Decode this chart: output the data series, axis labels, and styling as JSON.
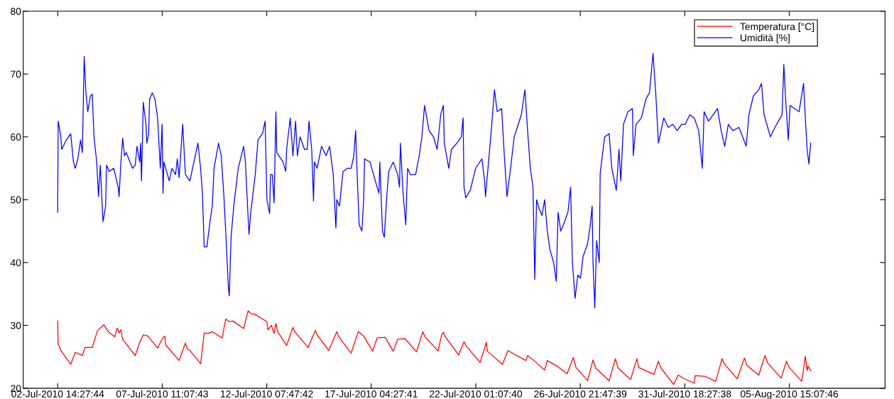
{
  "chart_data": {
    "type": "line",
    "xlim": [
      "2010-07-01T00:00",
      "2010-08-10T02:00"
    ],
    "xticks": [
      {
        "value": "2010-07-02T14:28",
        "label": "02-Jul-2010 14:27:44"
      },
      {
        "value": "2010-07-07T11:08",
        "label": "07-Jul-2010 11:07:43"
      },
      {
        "value": "2010-07-12T07:48",
        "label": "12-Jul-2010 07:47:42"
      },
      {
        "value": "2010-07-17T04:28",
        "label": "17-Jul-2010 04:27:41"
      },
      {
        "value": "2010-07-22T01:08",
        "label": "22-Jul-2010 01:07:40"
      },
      {
        "value": "2010-07-26T21:48",
        "label": "26-Jul-2010 21:47:39"
      },
      {
        "value": "2010-07-31T18:28",
        "label": "31-Jul-2010 18:27:38"
      },
      {
        "value": "2010-08-05T15:08",
        "label": "05-Aug-2010 15:07:46"
      }
    ],
    "ylim": [
      20,
      80
    ],
    "yticks": [
      20,
      30,
      40,
      50,
      60,
      70,
      80
    ],
    "grid": false,
    "legend": "top right",
    "marker": "none",
    "line_style": "solid",
    "series": [
      {
        "name": "Temperatura [°C]",
        "color": "#ff0000",
        "x": [
          "2010-07-02T14:27",
          "2010-07-02T15:00",
          "2010-07-02T18:00",
          "2010-07-03T05:00",
          "2010-07-03T10:00",
          "2010-07-03T18:00",
          "2010-07-03T21:00",
          "2010-07-04T05:00",
          "2010-07-04T11:00",
          "2010-07-04T18:00",
          "2010-07-04T23:00",
          "2010-07-05T06:00",
          "2010-07-05T09:00",
          "2010-07-05T11:00",
          "2010-07-05T13:00",
          "2010-07-05T15:00",
          "2010-07-06T05:00",
          "2010-07-06T10:00",
          "2010-07-06T14:00",
          "2010-07-06T19:00",
          "2010-07-07T06:00",
          "2010-07-07T11:00",
          "2010-07-07T14:00",
          "2010-07-07T15:00",
          "2010-07-08T06:00",
          "2010-07-08T10:00",
          "2010-07-08T13:00",
          "2010-07-08T15:00",
          "2010-07-08T18:00",
          "2010-07-09T06:00",
          "2010-07-09T10:00",
          "2010-07-09T14:00",
          "2010-07-09T19:00",
          "2010-07-10T06:00",
          "2010-07-10T10:00",
          "2010-07-10T14:00",
          "2010-07-10T18:00",
          "2010-07-11T06:00",
          "2010-07-11T11:00",
          "2010-07-11T15:00",
          "2010-07-11T18:00",
          "2010-07-12T08:00",
          "2010-07-12T09:00",
          "2010-07-12T13:00",
          "2010-07-12T16:00",
          "2010-07-12T18:00",
          "2010-07-12T20:00",
          "2010-07-13T06:00",
          "2010-07-13T13:00",
          "2010-07-13T15:00",
          "2010-07-14T06:00",
          "2010-07-14T14:00",
          "2010-07-14T16:00",
          "2010-07-15T05:00",
          "2010-07-15T14:00",
          "2010-07-15T16:00",
          "2010-07-16T06:00",
          "2010-07-16T14:00",
          "2010-07-16T20:00",
          "2010-07-17T06:00",
          "2010-07-17T11:00",
          "2010-07-17T20:00",
          "2010-07-18T05:00",
          "2010-07-18T10:00",
          "2010-07-18T18:00",
          "2010-07-19T07:00",
          "2010-07-19T14:00",
          "2010-07-19T16:00",
          "2010-07-20T07:00",
          "2010-07-20T11:00",
          "2010-07-20T13:00",
          "2010-07-20T15:00",
          "2010-07-21T06:00",
          "2010-07-21T12:00",
          "2010-07-21T14:00",
          "2010-07-22T06:00",
          "2010-07-22T13:00",
          "2010-07-22T14:00",
          "2010-07-23T07:00",
          "2010-07-23T13:00",
          "2010-07-24T09:00",
          "2010-07-24T11:00",
          "2010-07-24T18:00",
          "2010-07-25T06:00",
          "2010-07-25T09:00",
          "2010-07-25T20:00",
          "2010-07-26T07:00",
          "2010-07-26T14:00",
          "2010-07-26T17:00",
          "2010-07-27T06:00",
          "2010-07-27T12:00",
          "2010-07-27T15:00",
          "2010-07-28T06:00",
          "2010-07-28T13:00",
          "2010-07-28T16:00",
          "2010-07-29T06:00",
          "2010-07-29T13:00",
          "2010-07-29T15:00",
          "2010-07-30T08:00",
          "2010-07-30T13:00",
          "2010-07-30T16:00",
          "2010-07-31T06:00",
          "2010-07-31T11:00",
          "2010-07-31T18:00",
          "2010-08-01T05:00",
          "2010-08-01T06:00",
          "2010-08-01T17:00",
          "2010-08-02T05:00",
          "2010-08-02T12:00",
          "2010-08-02T15:00",
          "2010-08-03T05:00",
          "2010-08-03T13:00",
          "2010-08-03T16:00",
          "2010-08-04T05:00",
          "2010-08-04T12:00",
          "2010-08-04T15:00",
          "2010-08-05T06:00",
          "2010-08-05T12:00",
          "2010-08-05T15:00",
          "2010-08-06T05:00",
          "2010-08-06T09:00",
          "2010-08-06T11:00",
          "2010-08-06T12:00",
          "2010-08-06T15:00"
        ],
        "values": [
          30.7,
          27,
          26,
          23.8,
          25.7,
          25.2,
          26.5,
          26.5,
          29.2,
          30.1,
          29,
          28.2,
          29.6,
          28.8,
          29.3,
          27.8,
          25.2,
          27.3,
          28.5,
          28.3,
          26.4,
          27.8,
          28.3,
          26.9,
          24.4,
          26,
          27.2,
          26.3,
          26,
          23.9,
          28.8,
          28.7,
          29,
          28,
          31,
          30.6,
          30.7,
          29.5,
          32.3,
          31.8,
          31.8,
          30.6,
          29.3,
          30,
          28.7,
          30.3,
          29,
          26.8,
          29.7,
          29,
          26.5,
          29.2,
          28.5,
          26,
          29,
          28.2,
          25.6,
          29,
          28.3,
          25.9,
          28,
          28.1,
          25.9,
          27.8,
          27.9,
          25.8,
          29,
          28.3,
          25.9,
          28.5,
          28.9,
          28.2,
          25.3,
          27.4,
          26.8,
          24.1,
          27.3,
          25.9,
          23.8,
          26,
          24.4,
          25.2,
          24.4,
          22.9,
          24.4,
          23.5,
          22.3,
          24.9,
          23.3,
          21.2,
          24.5,
          23.2,
          21.2,
          24.7,
          23.2,
          21.4,
          24.7,
          23.3,
          22.2,
          24.3,
          23.2,
          20.6,
          22.1,
          21.5,
          20.8,
          22,
          21.9,
          21.1,
          24.7,
          23.8,
          21.5,
          24.8,
          23.6,
          22.1,
          25.2,
          24,
          21.6,
          24.3,
          23.3,
          21.1,
          25.1,
          22.8,
          23.5,
          22.8
        ]
      },
      {
        "name": "Umidità [%]",
        "color": "#0000ff",
        "x": [
          "2010-07-02T14:27",
          "2010-07-02T15:00",
          "2010-07-02T18:00",
          "2010-07-02T19:00",
          "2010-07-03T00:00",
          "2010-07-03T05:00",
          "2010-07-03T08:00",
          "2010-07-03T10:00",
          "2010-07-03T13:00",
          "2010-07-03T16:00",
          "2010-07-03T18:00",
          "2010-07-03T20:00",
          "2010-07-03T22:00",
          "2010-07-04T00:00",
          "2010-07-04T03:00",
          "2010-07-04T05:00",
          "2010-07-04T07:00",
          "2010-07-04T10:00",
          "2010-07-04T12:00",
          "2010-07-04T14:00",
          "2010-07-04T17:00",
          "2010-07-04T20:00",
          "2010-07-04T21:00",
          "2010-07-05T00:00",
          "2010-07-05T05:00",
          "2010-07-05T10:00",
          "2010-07-05T11:00",
          "2010-07-05T13:00",
          "2010-07-05T15:00",
          "2010-07-05T17:00",
          "2010-07-05T19:00",
          "2010-07-06T02:00",
          "2010-07-06T05:00",
          "2010-07-06T07:00",
          "2010-07-06T10:00",
          "2010-07-06T11:00",
          "2010-07-06T12:00",
          "2010-07-06T14:00",
          "2010-07-06T17:00",
          "2010-07-06T18:00",
          "2010-07-06T20:00",
          "2010-07-06T21:00",
          "2010-07-07T00:00",
          "2010-07-07T03:00",
          "2010-07-07T06:00",
          "2010-07-07T09:00",
          "2010-07-07T11:00",
          "2010-07-07T12:00",
          "2010-07-07T13:00",
          "2010-07-07T16:00",
          "2010-07-07T19:00",
          "2010-07-07T22:00",
          "2010-07-08T02:00",
          "2010-07-08T04:00",
          "2010-07-08T06:00",
          "2010-07-08T10:00",
          "2010-07-08T13:00",
          "2010-07-08T18:00",
          "2010-07-08T21:00",
          "2010-07-09T03:00",
          "2010-07-09T06:00",
          "2010-07-09T08:00",
          "2010-07-09T10:00",
          "2010-07-09T13:00",
          "2010-07-09T16:00",
          "2010-07-09T19:00",
          "2010-07-09T21:00",
          "2010-07-10T02:00",
          "2010-07-10T05:00",
          "2010-07-10T08:00",
          "2010-07-10T10:00",
          "2010-07-10T13:00",
          "2010-07-10T14:00",
          "2010-07-10T16:00",
          "2010-07-10T19:00",
          "2010-07-11T00:00",
          "2010-07-11T06:00",
          "2010-07-11T08:00",
          "2010-07-11T10:00",
          "2010-07-11T12:00",
          "2010-07-11T14:00",
          "2010-07-11T19:00",
          "2010-07-11T22:00",
          "2010-07-12T03:00",
          "2010-07-12T06:00",
          "2010-07-12T08:00",
          "2010-07-12T11:00",
          "2010-07-12T12:00",
          "2010-07-12T14:00",
          "2010-07-12T16:00",
          "2010-07-12T18:00",
          "2010-07-12T19:00",
          "2010-07-13T02:00",
          "2010-07-13T05:00",
          "2010-07-13T06:00",
          "2010-07-13T10:00",
          "2010-07-13T13:00",
          "2010-07-13T16:00",
          "2010-07-13T18:00",
          "2010-07-13T21:00",
          "2010-07-14T02:00",
          "2010-07-14T05:00",
          "2010-07-14T07:00",
          "2010-07-14T10:00",
          "2010-07-14T12:00",
          "2010-07-14T13:00",
          "2010-07-14T16:00",
          "2010-07-14T21:00",
          "2010-07-15T02:00",
          "2010-07-15T06:00",
          "2010-07-15T10:00",
          "2010-07-15T13:00",
          "2010-07-15T14:00",
          "2010-07-15T17:00",
          "2010-07-15T21:00",
          "2010-07-16T02:00",
          "2010-07-16T06:00",
          "2010-07-16T09:00",
          "2010-07-16T11:00",
          "2010-07-16T13:00",
          "2010-07-16T15:00",
          "2010-07-16T18:00",
          "2010-07-16T20:00",
          "2010-07-16T21:00",
          "2010-07-17T03:00",
          "2010-07-17T10:00",
          "2010-07-17T13:00",
          "2010-07-17T14:00",
          "2010-07-17T17:00",
          "2010-07-17T19:00",
          "2010-07-17T22:00",
          "2010-07-18T00:00",
          "2010-07-18T05:00",
          "2010-07-18T10:00",
          "2010-07-18T12:00",
          "2010-07-18T13:00",
          "2010-07-18T16:00",
          "2010-07-18T19:00",
          "2010-07-18T21:00",
          "2010-07-19T00:00",
          "2010-07-19T06:00",
          "2010-07-19T10:00",
          "2010-07-19T13:00",
          "2010-07-19T16:00",
          "2010-07-19T21:00",
          "2010-07-20T02:00",
          "2010-07-20T06:00",
          "2010-07-20T10:00",
          "2010-07-20T13:00",
          "2010-07-20T14:00",
          "2010-07-20T19:00",
          "2010-07-20T22:00",
          "2010-07-21T04:00",
          "2010-07-21T09:00",
          "2010-07-21T11:00",
          "2010-07-21T12:00",
          "2010-07-21T14:00",
          "2010-07-21T19:00",
          "2010-07-22T01:00",
          "2010-07-22T08:00",
          "2010-07-22T11:00",
          "2010-07-22T12:00",
          "2010-07-22T16:00",
          "2010-07-22T19:00",
          "2010-07-22T22:00",
          "2010-07-23T01:00",
          "2010-07-23T06:00",
          "2010-07-23T09:00",
          "2010-07-23T12:00",
          "2010-07-23T16:00",
          "2010-07-23T20:00",
          "2010-07-24T04:00",
          "2010-07-24T08:00",
          "2010-07-24T11:00",
          "2010-07-24T14:00",
          "2010-07-24T17:00",
          "2010-07-24T19:00",
          "2010-07-24T21:00",
          "2010-07-25T00:00",
          "2010-07-25T03:00",
          "2010-07-25T06:00",
          "2010-07-25T09:00",
          "2010-07-25T12:00",
          "2010-07-25T16:00",
          "2010-07-25T19:00",
          "2010-07-25T21:00",
          "2010-07-26T00:00",
          "2010-07-26T03:00",
          "2010-07-26T08:00",
          "2010-07-26T11:00",
          "2010-07-26T13:00",
          "2010-07-26T16:00",
          "2010-07-26T19:00",
          "2010-07-26T22:00",
          "2010-07-27T01:00",
          "2010-07-27T06:00",
          "2010-07-27T09:00",
          "2010-07-27T11:00",
          "2010-07-27T12:00",
          "2010-07-27T14:00",
          "2010-07-27T16:00",
          "2010-07-27T19:00",
          "2010-07-27T20:00",
          "2010-07-28T01:00",
          "2010-07-28T06:00",
          "2010-07-28T09:00",
          "2010-07-28T14:00",
          "2010-07-28T17:00",
          "2010-07-28T19:00",
          "2010-07-28T22:00",
          "2010-07-29T03:00",
          "2010-07-29T08:00",
          "2010-07-29T09:00",
          "2010-07-29T12:00",
          "2010-07-29T18:00",
          "2010-07-29T23:00",
          "2010-07-30T03:00",
          "2010-07-30T07:00",
          "2010-07-30T10:00",
          "2010-07-30T13:00",
          "2010-07-30T16:00",
          "2010-07-30T19:00",
          "2010-07-31T00:00",
          "2010-07-31T05:00",
          "2010-07-31T10:00",
          "2010-07-31T15:00",
          "2010-07-31T19:00",
          "2010-08-01T00:00",
          "2010-08-01T05:00",
          "2010-08-01T10:00",
          "2010-08-01T14:00",
          "2010-08-01T16:00",
          "2010-08-01T21:00",
          "2010-08-02T02:00",
          "2010-08-02T07:00",
          "2010-08-02T11:00",
          "2010-08-02T15:00",
          "2010-08-02T19:00",
          "2010-08-03T00:00",
          "2010-08-03T07:00",
          "2010-08-03T11:00",
          "2010-08-03T15:00",
          "2010-08-03T18:00",
          "2010-08-03T23:00",
          "2010-08-04T05:00",
          "2010-08-04T08:00",
          "2010-08-04T11:00",
          "2010-08-04T15:00",
          "2010-08-04T18:00",
          "2010-08-04T23:00",
          "2010-08-05T03:00",
          "2010-08-05T07:00",
          "2010-08-05T09:00",
          "2010-08-05T11:00",
          "2010-08-05T14:00",
          "2010-08-05T16:00",
          "2010-08-05T21:00",
          "2010-08-06T02:00",
          "2010-08-06T07:00",
          "2010-08-06T09:00",
          "2010-08-06T11:00",
          "2010-08-06T13:00",
          "2010-08-06T15:00"
        ],
        "values": [
          48,
          62.5,
          60,
          58,
          59.5,
          60.5,
          56,
          55,
          56.5,
          59.5,
          57.5,
          72.8,
          67,
          64,
          66.5,
          66.8,
          60,
          56,
          50.5,
          55.5,
          46.5,
          49,
          55.5,
          54.5,
          55,
          52,
          50.5,
          56,
          59.8,
          57,
          57.5,
          55,
          55.5,
          58.5,
          56,
          59,
          53,
          65.5,
          62,
          59,
          60.5,
          66,
          67,
          66,
          63,
          55,
          62,
          51,
          56,
          54.5,
          53,
          55,
          54,
          56.5,
          53.5,
          62,
          54,
          53,
          55,
          59,
          55,
          51,
          42.5,
          42.5,
          46,
          49,
          55,
          59,
          57,
          50.5,
          45,
          36,
          34.7,
          44,
          49,
          55,
          58.5,
          56,
          50,
          44.5,
          48,
          54,
          59.5,
          60.5,
          62.5,
          50,
          47.8,
          54,
          54,
          49.5,
          64,
          57.5,
          56,
          54.5,
          58,
          63,
          57,
          62.5,
          57,
          60,
          58,
          58,
          62.5,
          58,
          49.8,
          56,
          55,
          58.5,
          57,
          58.5,
          54,
          45.5,
          50,
          49,
          54.5,
          55,
          55,
          57,
          61,
          53,
          46,
          45,
          50,
          56.5,
          56,
          52.5,
          51,
          56,
          45,
          44,
          51,
          54.5,
          56,
          54,
          52,
          59,
          51,
          46,
          55,
          54,
          54,
          57,
          60,
          65,
          61,
          60,
          58,
          63.5,
          65,
          59,
          55,
          58,
          59,
          60,
          63,
          52,
          50.3,
          51.5,
          55,
          56.5,
          53,
          50.5,
          57,
          62,
          67.5,
          64,
          64.5,
          57,
          50.5,
          55,
          60,
          63.5,
          67.5,
          61,
          55,
          52,
          37.3,
          50,
          48.5,
          47.5,
          50,
          45,
          42,
          40,
          37,
          48,
          45,
          46,
          48,
          52,
          40,
          34.3,
          38,
          37.5,
          41,
          43,
          46,
          49,
          40,
          32.8,
          43.5,
          40,
          54.2,
          60,
          60.5,
          55,
          51.5,
          58,
          53,
          62,
          64,
          64.5,
          57,
          62,
          63,
          66,
          67,
          73.3,
          67,
          59,
          61,
          63,
          61.5,
          62,
          61,
          62,
          62,
          63.5,
          63,
          61,
          55,
          64,
          62.5,
          63.5,
          64.5,
          61,
          58.5,
          62,
          61,
          61.5,
          60,
          58.5,
          63.5,
          66.5,
          67.5,
          68.5,
          63.5,
          61.5,
          60,
          61.5,
          62.5,
          63.5,
          71.5,
          66,
          59.5,
          65,
          64.5,
          64,
          68.5,
          63,
          58,
          55.7,
          59
        ]
      }
    ]
  }
}
